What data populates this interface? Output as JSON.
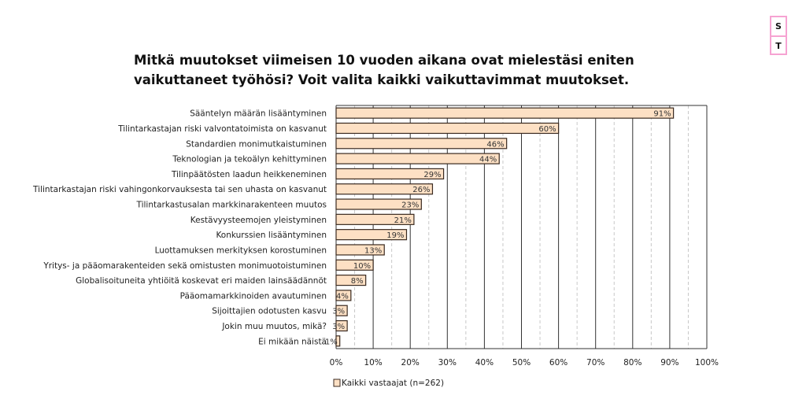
{
  "logo": {
    "letters": [
      "S",
      "T"
    ],
    "border_color": "#f6a3d2"
  },
  "chart_data": {
    "type": "bar",
    "orientation": "horizontal",
    "title": "Mitkä muutokset viimeisen 10 vuoden aikana ovat mielestäsi eniten vaikuttaneet työhösi? Voit valita kaikki vaikuttavimmat muutokset.",
    "categories": [
      "Sääntelyn määrän lisääntyminen",
      "Tilintarkastajan riski valvontatoimista on kasvanut",
      "Standardien monimutkaistuminen",
      "Teknologian ja tekoälyn kehittyminen",
      "Tilinpäätösten laadun heikkeneminen",
      "Tilintarkastajan riski vahingonkorvauksesta tai sen uhasta on kasvanut",
      "Tilintarkastusalan markkinarakenteen muutos",
      "Kestävyysteemojen yleistyminen",
      "Konkurssien lisääntyminen",
      "Luottamuksen merkityksen korostuminen",
      "Yritys- ja pääomarakenteiden sekä omistusten monimuotoistuminen",
      "Globalisoituneita yhtiöitä koskevat eri maiden lainsäädännöt",
      "Pääomamarkkinoiden avautuminen",
      "Sijoittajien odotusten kasvu",
      "Jokin muu muutos, mikä?",
      "Ei mikään näistä"
    ],
    "series": [
      {
        "name": "Kaikki vastaajat (n=262)",
        "values": [
          91,
          60,
          46,
          44,
          29,
          26,
          23,
          21,
          19,
          13,
          10,
          8,
          4,
          3,
          3,
          1
        ],
        "color": "#fde0c4"
      }
    ],
    "data_labels": [
      "91%",
      "60%",
      "46%",
      "44%",
      "29%",
      "26%",
      "23%",
      "21%",
      "19%",
      "13%",
      "10%",
      "8%",
      "4%",
      "3%",
      "3%",
      "1%"
    ],
    "xlim": [
      0,
      100
    ],
    "x_ticks": [
      "0%",
      "10%",
      "20%",
      "30%",
      "40%",
      "50%",
      "60%",
      "70%",
      "80%",
      "90%",
      "100%"
    ],
    "grid": true,
    "legend": "bottom-left",
    "xlabel": "",
    "ylabel": ""
  }
}
